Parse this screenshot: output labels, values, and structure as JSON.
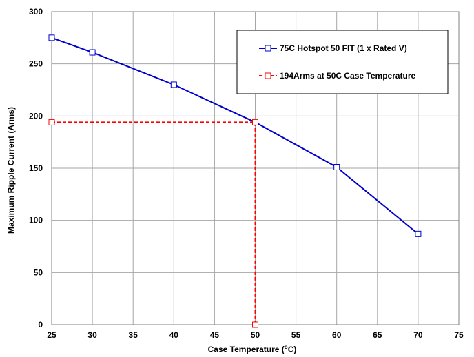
{
  "chart_data": {
    "type": "line",
    "xlabel_main": "Case Temperature (",
    "xlabel_sup": "o",
    "xlabel_end": "C)",
    "ylabel": "Maximum Ripple Current (Arms)",
    "xlim": [
      25,
      75
    ],
    "ylim": [
      0,
      300
    ],
    "x_ticks": [
      25,
      30,
      35,
      40,
      45,
      50,
      55,
      60,
      65,
      70,
      75
    ],
    "y_ticks": [
      0,
      50,
      100,
      150,
      200,
      250,
      300
    ],
    "grid": true,
    "legend_position": "top-right",
    "series": [
      {
        "name": "75C Hotspot 50 FIT (1 x Rated V)",
        "color": "#0000cc",
        "line_style": "solid",
        "marker": "hollow-square",
        "x": [
          25,
          30,
          40,
          50,
          60,
          70
        ],
        "y": [
          275,
          261,
          230,
          194,
          151,
          87
        ]
      },
      {
        "name": "194Arms at 50C Case Temperature",
        "color": "#ff0000",
        "line_style": "dashed",
        "marker": "hollow-square",
        "x": [
          25,
          50,
          50
        ],
        "y": [
          194,
          194,
          0
        ]
      }
    ]
  }
}
